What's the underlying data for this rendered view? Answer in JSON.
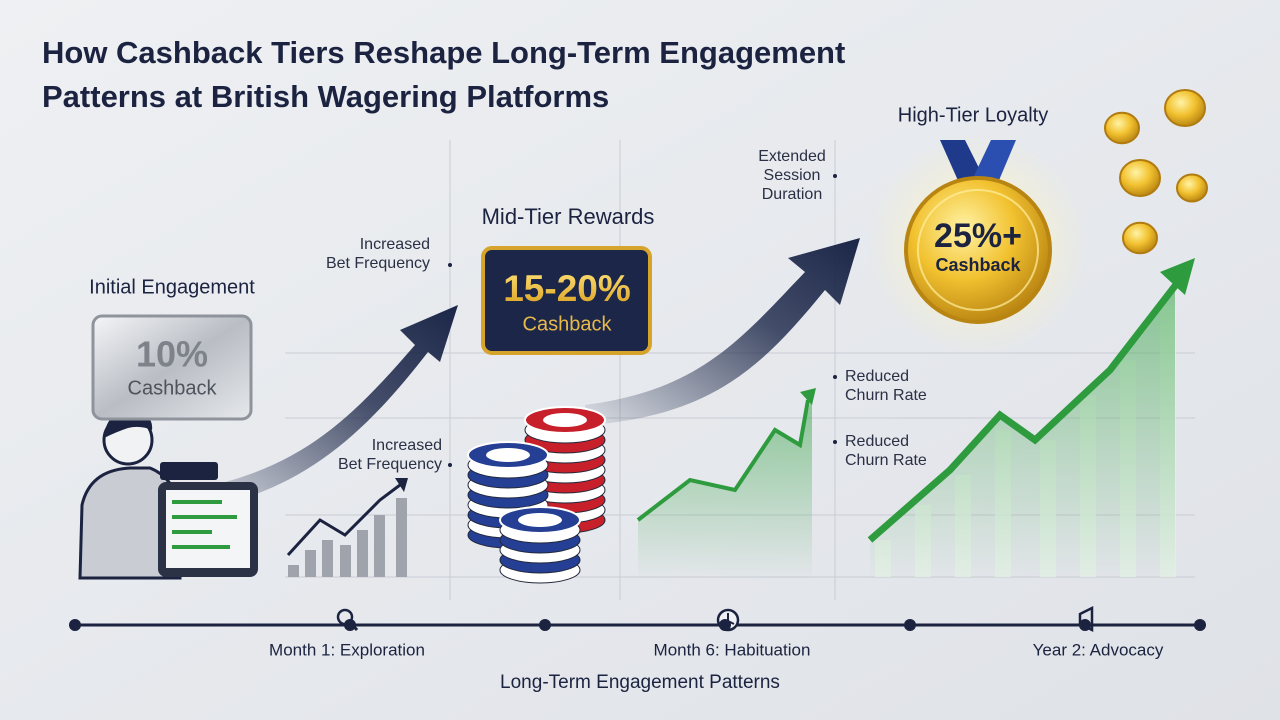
{
  "title_lines": [
    "How Cashback Tiers Reshape Long-Term Engagement",
    "Patterns at British Wagering Platforms"
  ],
  "tiers": [
    {
      "label": "Initial Engagement",
      "rate": "10%",
      "caption": "Cashback"
    },
    {
      "label": "Mid-Tier Rewards",
      "rate": "15-20%",
      "caption": "Cashback"
    },
    {
      "label": "High-Tier Loyalty",
      "rate": "25%+",
      "caption": "Cashback"
    }
  ],
  "annotations": [
    [
      "Increased",
      "Bet Frequency"
    ],
    [
      "Increased",
      "Bet Frequency"
    ],
    [
      "Extended",
      "Session",
      "Duration"
    ],
    [
      "Reduced",
      "Churn Rate"
    ],
    [
      "Reduced",
      "Churn Rate"
    ]
  ],
  "timeline": [
    "Month 1: Exploration",
    "Month 6: Habituation",
    "Year 2: Advocacy"
  ],
  "footer": "Long-Term Engagement Patterns"
}
